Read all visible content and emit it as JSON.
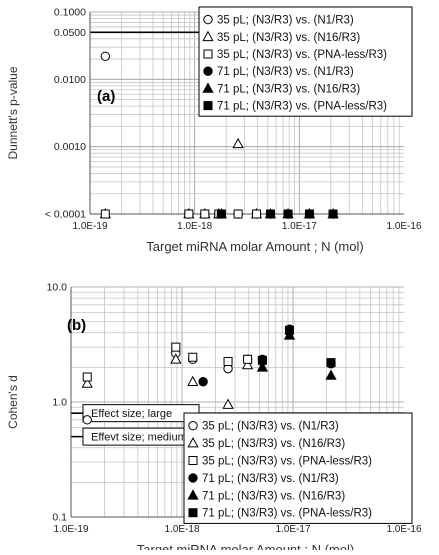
{
  "chart_data": [
    {
      "type": "scatter",
      "panel_label": "(a)",
      "xlabel": "Target miRNA molar Amount ; N  (mol)",
      "ylabel": "Dunnett's p-value",
      "x_scale": "log",
      "y_scale": "log",
      "xlim": [
        1e-19,
        1e-16
      ],
      "ylim": [
        0.0001,
        0.1
      ],
      "x_tick_labels": [
        "1.0E-19",
        "1.0E-18",
        "1.0E-17",
        "1.0E-16"
      ],
      "y_ticks": [
        {
          "value": 0.1,
          "label": "0.1000"
        },
        {
          "value": 0.05,
          "label": "0.0500"
        },
        {
          "value": 0.01,
          "label": "0.0100"
        },
        {
          "value": 0.001,
          "label": "0.0010"
        },
        {
          "value": 0.0001,
          "label": "< 0.0001"
        }
      ],
      "reference_lines": [
        0.05
      ],
      "grid": true,
      "legend_position": "top-right",
      "series": [
        {
          "name": "35 pL; (N3/R3) vs. (N1/R3)",
          "marker": "circle-open",
          "points": [
            [
              1.4e-19,
              0.022
            ],
            [
              8.8e-19,
              0.0001
            ],
            [
              1.25e-18,
              0.0001
            ],
            [
              1.7e-18,
              0.0001
            ],
            [
              2.6e-18,
              0.0001
            ],
            [
              3.9e-18,
              0.0001
            ]
          ]
        },
        {
          "name": "35 pL; (N3/R3) vs. (N16/R3)",
          "marker": "triangle-open",
          "points": [
            [
              1.4e-19,
              0.0001
            ],
            [
              8.8e-19,
              0.0001
            ],
            [
              1.25e-18,
              0.0001
            ],
            [
              1.7e-18,
              0.0001
            ],
            [
              2.6e-18,
              0.0011
            ],
            [
              3.9e-18,
              0.0001
            ]
          ]
        },
        {
          "name": "35 pL; (N3/R3) vs. (PNA-less/R3)",
          "marker": "square-open",
          "points": [
            [
              1.4e-19,
              0.0001
            ],
            [
              8.8e-19,
              0.0001
            ],
            [
              1.25e-18,
              0.0001
            ],
            [
              1.7e-18,
              0.0001
            ],
            [
              2.6e-18,
              0.0001
            ],
            [
              3.9e-18,
              0.0001
            ]
          ]
        },
        {
          "name": "71 pL; (N3/R3) vs. (N1/R3)",
          "marker": "circle-filled",
          "points": [
            [
              1.8e-18,
              0.0001
            ],
            [
              5.3e-18,
              0.0001
            ],
            [
              7.8e-18,
              0.0001
            ],
            [
              1.25e-17,
              0.0001
            ],
            [
              2.1e-17,
              0.0001
            ]
          ]
        },
        {
          "name": "71 pL; (N3/R3) vs. (N16/R3)",
          "marker": "triangle-filled",
          "points": [
            [
              1.8e-18,
              0.0001
            ],
            [
              5.3e-18,
              0.0001
            ],
            [
              7.8e-18,
              0.0001
            ],
            [
              1.25e-17,
              0.0001
            ],
            [
              2.1e-17,
              0.0001
            ]
          ]
        },
        {
          "name": "71 pL; (N3/R3) vs. (PNA-less/R3)",
          "marker": "square-filled",
          "points": [
            [
              1.8e-18,
              0.0001
            ],
            [
              5.3e-18,
              0.0001
            ],
            [
              7.8e-18,
              0.0001
            ],
            [
              1.25e-17,
              0.0001
            ],
            [
              2.1e-17,
              0.0001
            ]
          ]
        }
      ]
    },
    {
      "type": "scatter",
      "panel_label": "(b)",
      "xlabel": "Target miRNA molar Amount ; N  (mol)",
      "ylabel": "Cohen's d",
      "x_scale": "log",
      "y_scale": "log",
      "xlim": [
        1e-19,
        1e-16
      ],
      "ylim": [
        0.1,
        10
      ],
      "x_tick_labels": [
        "1.0E-19",
        "1.0E-18",
        "1.0E-17",
        "1.0E-16"
      ],
      "y_ticks": [
        {
          "value": 10,
          "label": "10.0"
        },
        {
          "value": 1,
          "label": "1.0"
        },
        {
          "value": 0.1,
          "label": "0.1"
        }
      ],
      "reference_lines": [
        {
          "value": 0.8,
          "label": "Effect  size; large"
        },
        {
          "value": 0.5,
          "label": "Effevt  size; medium"
        }
      ],
      "grid": true,
      "legend_position": "bottom-right",
      "series": [
        {
          "name": "35 pL; (N3/R3) vs. (N1/R3)",
          "marker": "circle-open",
          "points": [
            [
              1.4e-19,
              0.7
            ],
            [
              8.8e-19,
              2.65
            ],
            [
              1.25e-18,
              2.35
            ],
            [
              2.6e-18,
              1.95
            ],
            [
              3.9e-18,
              2.35
            ]
          ]
        },
        {
          "name": "35 pL; (N3/R3) vs. (N16/R3)",
          "marker": "triangle-open",
          "points": [
            [
              1.4e-19,
              1.45
            ],
            [
              8.8e-19,
              2.35
            ],
            [
              1.25e-18,
              1.5
            ],
            [
              2.6e-18,
              0.95
            ],
            [
              3.9e-18,
              2.1
            ]
          ]
        },
        {
          "name": "35 pL; (N3/R3) vs. (PNA-less/R3)",
          "marker": "square-open",
          "points": [
            [
              1.4e-19,
              1.65
            ],
            [
              8.8e-19,
              3.0
            ],
            [
              1.25e-18,
              2.45
            ],
            [
              2.6e-18,
              2.25
            ],
            [
              3.9e-18,
              2.35
            ]
          ]
        },
        {
          "name": "71 pL; (N3/R3) vs. (N1/R3)",
          "marker": "circle-filled",
          "points": [
            [
              1.55e-18,
              1.5
            ],
            [
              5.3e-18,
              2.35
            ],
            [
              9.3e-18,
              4.3
            ],
            [
              2.2e-17,
              2.15
            ]
          ]
        },
        {
          "name": "71 pL; (N3/R3) vs. (N16/R3)",
          "marker": "triangle-filled",
          "points": [
            [
              5.3e-18,
              2.0
            ],
            [
              9.3e-18,
              3.8
            ],
            [
              2.2e-17,
              1.7
            ]
          ]
        },
        {
          "name": "71 pL; (N3/R3) vs. (PNA-less/R3)",
          "marker": "square-filled",
          "points": [
            [
              5.3e-18,
              2.3
            ],
            [
              9.3e-18,
              4.2
            ],
            [
              2.2e-17,
              2.2
            ]
          ]
        }
      ]
    }
  ]
}
